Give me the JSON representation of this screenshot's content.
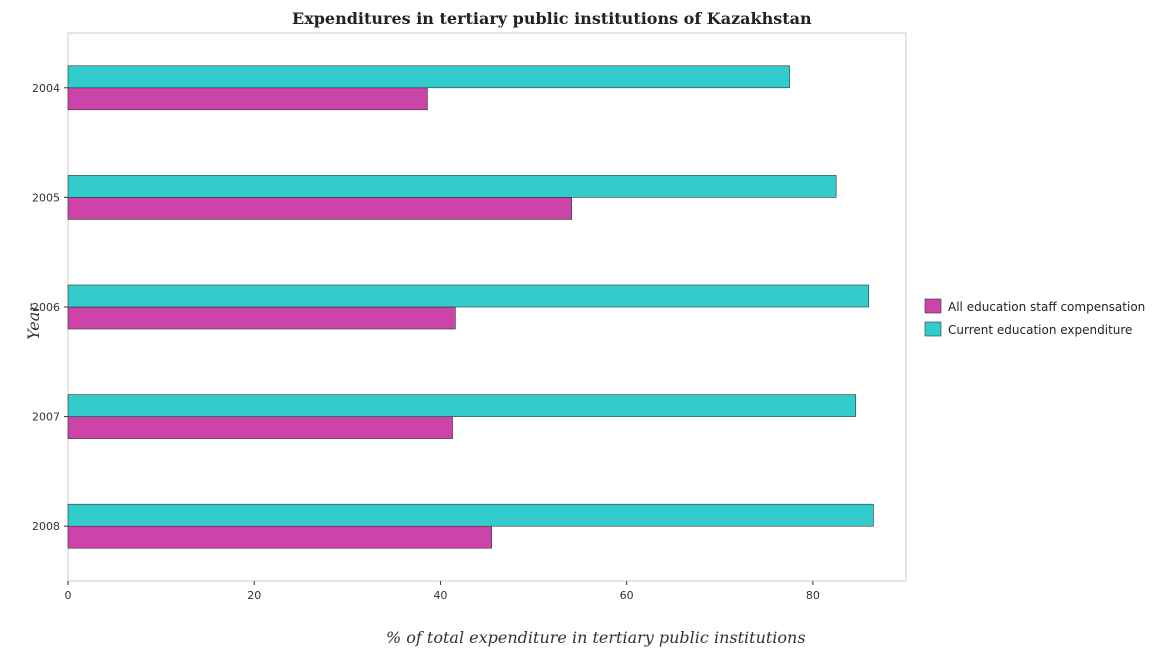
{
  "chart_data": {
    "type": "bar",
    "orientation": "horizontal",
    "title": "Expenditures in tertiary public institutions of Kazakhstan",
    "xlabel": "% of total expenditure in tertiary public institutions",
    "ylabel": "Year",
    "categories": [
      "2004",
      "2005",
      "2006",
      "2007",
      "2008"
    ],
    "xlim": [
      0,
      90
    ],
    "xticks": [
      0,
      20,
      40,
      60,
      80
    ],
    "grid": false,
    "legend_position": "right",
    "series": [
      {
        "name": "All education staff compensation",
        "color": "#cc44aa",
        "values": [
          38.6,
          54.1,
          41.6,
          41.3,
          45.5
        ]
      },
      {
        "name": "Current education expenditure",
        "color": "#33cccc",
        "values": [
          77.5,
          82.5,
          86.0,
          84.6,
          86.5
        ]
      }
    ]
  }
}
